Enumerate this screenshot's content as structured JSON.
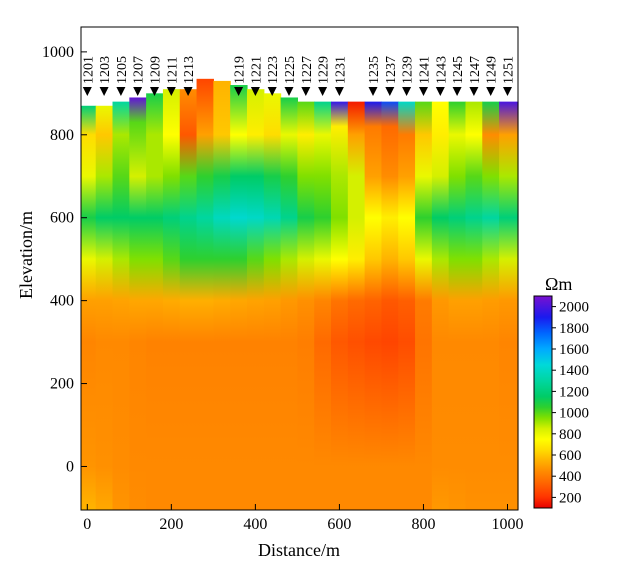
{
  "chart_data": {
    "type": "heatmap",
    "title": "",
    "xlabel": "Distance/m",
    "ylabel": "Elevation/m",
    "xlim": [
      -15,
      1025
    ],
    "ylim": [
      -105,
      1060
    ],
    "x_ticks": [
      0,
      200,
      400,
      600,
      800,
      1000
    ],
    "y_ticks": [
      0,
      200,
      400,
      600,
      800,
      1000
    ],
    "surface_elevation_range": [
      860,
      935
    ],
    "colorbar": {
      "unit": "Ωm",
      "range": [
        100,
        2100
      ],
      "ticks": [
        200,
        400,
        600,
        800,
        1000,
        1200,
        1400,
        1600,
        1800,
        2000
      ],
      "stops": [
        {
          "value": 100,
          "color": "#e60000"
        },
        {
          "value": 200,
          "color": "#ff3300"
        },
        {
          "value": 350,
          "color": "#ff6a00"
        },
        {
          "value": 450,
          "color": "#ff8c00"
        },
        {
          "value": 550,
          "color": "#ffb300"
        },
        {
          "value": 650,
          "color": "#ffdd00"
        },
        {
          "value": 750,
          "color": "#ffff00"
        },
        {
          "value": 850,
          "color": "#d4f000"
        },
        {
          "value": 950,
          "color": "#80e000"
        },
        {
          "value": 1050,
          "color": "#2ed02e"
        },
        {
          "value": 1150,
          "color": "#00cc66"
        },
        {
          "value": 1300,
          "color": "#00d6a0"
        },
        {
          "value": 1450,
          "color": "#00d9d9"
        },
        {
          "value": 1600,
          "color": "#00aaff"
        },
        {
          "value": 1750,
          "color": "#0066ff"
        },
        {
          "value": 1900,
          "color": "#1a1aee"
        },
        {
          "value": 2100,
          "color": "#7a10d0"
        }
      ]
    },
    "stations": [
      {
        "label": "1201",
        "x": 0
      },
      {
        "label": "1203",
        "x": 40
      },
      {
        "label": "1205",
        "x": 80
      },
      {
        "label": "1207",
        "x": 120
      },
      {
        "label": "1209",
        "x": 160
      },
      {
        "label": "1211",
        "x": 200
      },
      {
        "label": "1213",
        "x": 240
      },
      {
        "label": "1219",
        "x": 360
      },
      {
        "label": "1221",
        "x": 400
      },
      {
        "label": "1223",
        "x": 440
      },
      {
        "label": "1225",
        "x": 480
      },
      {
        "label": "1227",
        "x": 520
      },
      {
        "label": "1229",
        "x": 560
      },
      {
        "label": "1231",
        "x": 600
      },
      {
        "label": "1235",
        "x": 680
      },
      {
        "label": "1237",
        "x": 720
      },
      {
        "label": "1239",
        "x": 760
      },
      {
        "label": "1241",
        "x": 800
      },
      {
        "label": "1243",
        "x": 840
      },
      {
        "label": "1245",
        "x": 880
      },
      {
        "label": "1247",
        "x": 920
      },
      {
        "label": "1249",
        "x": 960
      },
      {
        "label": "1251",
        "x": 1000
      }
    ],
    "resistivity_profile": [
      {
        "x": 0,
        "values": [
          [
            870,
            1200
          ],
          [
            800,
            650
          ],
          [
            700,
            800
          ],
          [
            600,
            1100
          ],
          [
            500,
            800
          ],
          [
            400,
            500
          ],
          [
            300,
            430
          ],
          [
            0,
            470
          ],
          [
            -100,
            550
          ]
        ]
      },
      {
        "x": 40,
        "values": [
          [
            870,
            800
          ],
          [
            800,
            600
          ],
          [
            700,
            900
          ],
          [
            600,
            1150
          ],
          [
            500,
            850
          ],
          [
            400,
            500
          ],
          [
            300,
            440
          ],
          [
            0,
            460
          ],
          [
            -100,
            520
          ]
        ]
      },
      {
        "x": 80,
        "values": [
          [
            880,
            1300
          ],
          [
            800,
            900
          ],
          [
            700,
            1000
          ],
          [
            600,
            1150
          ],
          [
            500,
            900
          ],
          [
            400,
            510
          ],
          [
            300,
            440
          ],
          [
            0,
            450
          ],
          [
            -100,
            470
          ]
        ]
      },
      {
        "x": 120,
        "values": [
          [
            890,
            2050
          ],
          [
            830,
            1000
          ],
          [
            700,
            850
          ],
          [
            600,
            1150
          ],
          [
            500,
            950
          ],
          [
            400,
            520
          ],
          [
            300,
            430
          ],
          [
            0,
            440
          ],
          [
            -100,
            450
          ]
        ]
      },
      {
        "x": 160,
        "values": [
          [
            900,
            1100
          ],
          [
            800,
            900
          ],
          [
            700,
            900
          ],
          [
            600,
            1150
          ],
          [
            500,
            950
          ],
          [
            400,
            520
          ],
          [
            300,
            420
          ],
          [
            0,
            440
          ],
          [
            -100,
            440
          ]
        ]
      },
      {
        "x": 200,
        "values": [
          [
            910,
            850
          ],
          [
            800,
            750
          ],
          [
            700,
            950
          ],
          [
            600,
            1200
          ],
          [
            500,
            1000
          ],
          [
            400,
            530
          ],
          [
            300,
            420
          ],
          [
            0,
            440
          ],
          [
            -100,
            440
          ]
        ]
      },
      {
        "x": 240,
        "values": [
          [
            910,
            450
          ],
          [
            800,
            300
          ],
          [
            700,
            1000
          ],
          [
            600,
            1250
          ],
          [
            500,
            1050
          ],
          [
            400,
            540
          ],
          [
            300,
            420
          ],
          [
            0,
            440
          ],
          [
            -100,
            440
          ]
        ]
      },
      {
        "x": 280,
        "values": [
          [
            935,
            250
          ],
          [
            800,
            500
          ],
          [
            700,
            1050
          ],
          [
            600,
            1300
          ],
          [
            500,
            1050
          ],
          [
            400,
            540
          ],
          [
            300,
            420
          ],
          [
            0,
            440
          ],
          [
            -100,
            440
          ]
        ]
      },
      {
        "x": 320,
        "values": [
          [
            930,
            550
          ],
          [
            800,
            600
          ],
          [
            700,
            1100
          ],
          [
            600,
            1380
          ],
          [
            500,
            1050
          ],
          [
            400,
            530
          ],
          [
            300,
            420
          ],
          [
            0,
            440
          ],
          [
            -100,
            440
          ]
        ]
      },
      {
        "x": 360,
        "values": [
          [
            920,
            1100
          ],
          [
            800,
            750
          ],
          [
            700,
            1150
          ],
          [
            600,
            1420
          ],
          [
            500,
            1050
          ],
          [
            400,
            520
          ],
          [
            300,
            420
          ],
          [
            0,
            440
          ],
          [
            -100,
            440
          ]
        ]
      },
      {
        "x": 400,
        "values": [
          [
            910,
            850
          ],
          [
            800,
            700
          ],
          [
            700,
            1150
          ],
          [
            600,
            1400
          ],
          [
            500,
            1000
          ],
          [
            400,
            510
          ],
          [
            300,
            420
          ],
          [
            0,
            440
          ],
          [
            -100,
            440
          ]
        ]
      },
      {
        "x": 440,
        "values": [
          [
            900,
            800
          ],
          [
            800,
            650
          ],
          [
            700,
            1100
          ],
          [
            600,
            1350
          ],
          [
            500,
            950
          ],
          [
            400,
            500
          ],
          [
            300,
            420
          ],
          [
            0,
            440
          ],
          [
            -100,
            440
          ]
        ]
      },
      {
        "x": 480,
        "values": [
          [
            890,
            1100
          ],
          [
            800,
            800
          ],
          [
            700,
            1050
          ],
          [
            600,
            1250
          ],
          [
            500,
            900
          ],
          [
            400,
            480
          ],
          [
            300,
            420
          ],
          [
            0,
            440
          ],
          [
            -100,
            440
          ]
        ]
      },
      {
        "x": 520,
        "values": [
          [
            880,
            1000
          ],
          [
            800,
            700
          ],
          [
            700,
            950
          ],
          [
            600,
            1100
          ],
          [
            500,
            850
          ],
          [
            400,
            460
          ],
          [
            300,
            410
          ],
          [
            0,
            440
          ],
          [
            -100,
            440
          ]
        ]
      },
      {
        "x": 560,
        "values": [
          [
            880,
            1250
          ],
          [
            800,
            800
          ],
          [
            700,
            950
          ],
          [
            600,
            1050
          ],
          [
            500,
            800
          ],
          [
            400,
            430
          ],
          [
            300,
            350
          ],
          [
            0,
            440
          ],
          [
            -100,
            440
          ]
        ]
      },
      {
        "x": 600,
        "values": [
          [
            880,
            1950
          ],
          [
            820,
            700
          ],
          [
            700,
            900
          ],
          [
            600,
            950
          ],
          [
            500,
            750
          ],
          [
            400,
            380
          ],
          [
            300,
            300
          ],
          [
            0,
            440
          ],
          [
            -100,
            440
          ]
        ]
      },
      {
        "x": 640,
        "values": [
          [
            880,
            150
          ],
          [
            800,
            500
          ],
          [
            700,
            850
          ],
          [
            600,
            850
          ],
          [
            500,
            700
          ],
          [
            400,
            350
          ],
          [
            300,
            280
          ],
          [
            0,
            440
          ],
          [
            -100,
            440
          ]
        ]
      },
      {
        "x": 680,
        "values": [
          [
            880,
            1900
          ],
          [
            820,
            400
          ],
          [
            700,
            500
          ],
          [
            600,
            750
          ],
          [
            500,
            600
          ],
          [
            400,
            330
          ],
          [
            300,
            260
          ],
          [
            0,
            440
          ],
          [
            -100,
            440
          ]
        ]
      },
      {
        "x": 720,
        "values": [
          [
            880,
            1800
          ],
          [
            820,
            350
          ],
          [
            700,
            450
          ],
          [
            600,
            700
          ],
          [
            500,
            550
          ],
          [
            400,
            300
          ],
          [
            300,
            250
          ],
          [
            0,
            440
          ],
          [
            -100,
            440
          ]
        ]
      },
      {
        "x": 760,
        "values": [
          [
            880,
            1400
          ],
          [
            800,
            400
          ],
          [
            700,
            500
          ],
          [
            600,
            750
          ],
          [
            500,
            600
          ],
          [
            400,
            320
          ],
          [
            300,
            270
          ],
          [
            0,
            440
          ],
          [
            -100,
            440
          ]
        ]
      },
      {
        "x": 800,
        "values": [
          [
            880,
            1000
          ],
          [
            800,
            600
          ],
          [
            700,
            800
          ],
          [
            600,
            1050
          ],
          [
            500,
            800
          ],
          [
            400,
            400
          ],
          [
            300,
            380
          ],
          [
            0,
            440
          ],
          [
            -100,
            440
          ]
        ]
      },
      {
        "x": 840,
        "values": [
          [
            880,
            750
          ],
          [
            800,
            700
          ],
          [
            700,
            850
          ],
          [
            600,
            1150
          ],
          [
            500,
            900
          ],
          [
            400,
            480
          ],
          [
            300,
            440
          ],
          [
            0,
            450
          ],
          [
            -100,
            480
          ]
        ]
      },
      {
        "x": 880,
        "values": [
          [
            880,
            1050
          ],
          [
            800,
            800
          ],
          [
            700,
            950
          ],
          [
            600,
            1200
          ],
          [
            500,
            950
          ],
          [
            400,
            500
          ],
          [
            300,
            440
          ],
          [
            0,
            450
          ],
          [
            -100,
            470
          ]
        ]
      },
      {
        "x": 920,
        "values": [
          [
            880,
            900
          ],
          [
            800,
            750
          ],
          [
            700,
            1000
          ],
          [
            600,
            1250
          ],
          [
            500,
            950
          ],
          [
            400,
            500
          ],
          [
            300,
            440
          ],
          [
            0,
            450
          ],
          [
            -100,
            460
          ]
        ]
      },
      {
        "x": 960,
        "values": [
          [
            880,
            1100
          ],
          [
            800,
            450
          ],
          [
            700,
            950
          ],
          [
            600,
            1300
          ],
          [
            500,
            900
          ],
          [
            400,
            490
          ],
          [
            300,
            440
          ],
          [
            0,
            450
          ],
          [
            -100,
            460
          ]
        ]
      },
      {
        "x": 1000,
        "values": [
          [
            880,
            2000
          ],
          [
            800,
            500
          ],
          [
            700,
            900
          ],
          [
            600,
            1200
          ],
          [
            500,
            850
          ],
          [
            400,
            480
          ],
          [
            300,
            430
          ],
          [
            0,
            450
          ],
          [
            -100,
            460
          ]
        ]
      }
    ]
  }
}
